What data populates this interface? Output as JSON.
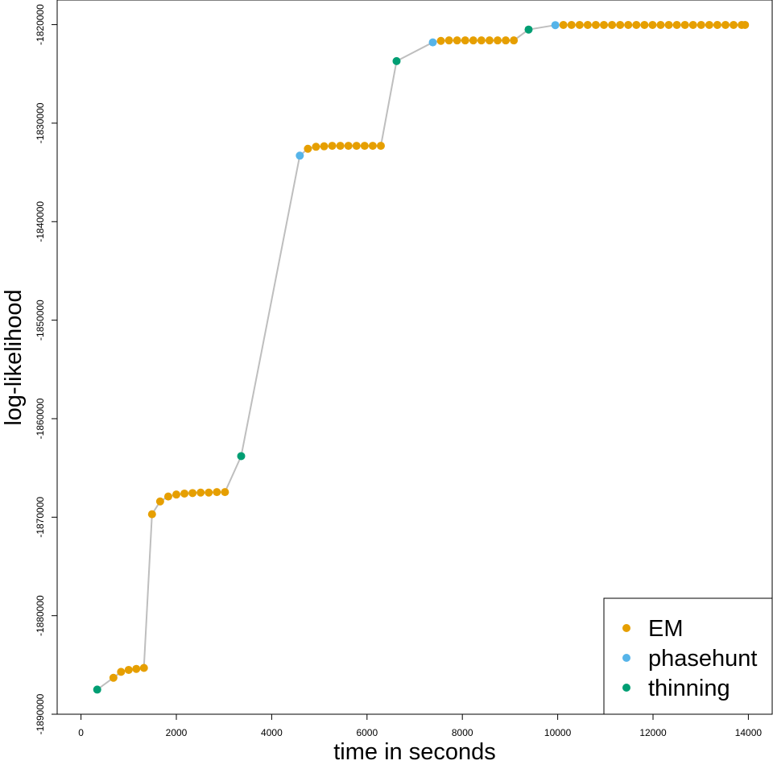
{
  "chart_data": {
    "type": "scatter",
    "title": "",
    "xlabel": "time in seconds",
    "ylabel": "log-likelihood",
    "xlim": [
      -500,
      14500
    ],
    "ylim": [
      -1890000,
      -1817500
    ],
    "xticks": [
      0,
      2000,
      4000,
      6000,
      8000,
      10000,
      12000,
      14000
    ],
    "yticks": [
      -1890000,
      -1880000,
      -1870000,
      -1860000,
      -1850000,
      -1840000,
      -1830000,
      -1820000
    ],
    "grid": false,
    "legend_position": "bottom-right",
    "line_color": "#bebebe",
    "series": [
      {
        "name": "EM",
        "color": "#E69F00"
      },
      {
        "name": "phasehunt",
        "color": "#56B4E9"
      },
      {
        "name": "thinning",
        "color": "#009E73"
      }
    ],
    "points": [
      {
        "x": 340,
        "y": -1887500,
        "series": "thinning"
      },
      {
        "x": 680,
        "y": -1886300,
        "series": "EM"
      },
      {
        "x": 840,
        "y": -1885700,
        "series": "EM"
      },
      {
        "x": 1000,
        "y": -1885500,
        "series": "EM"
      },
      {
        "x": 1160,
        "y": -1885400,
        "series": "EM"
      },
      {
        "x": 1320,
        "y": -1885300,
        "series": "EM"
      },
      {
        "x": 1490,
        "y": -1869700,
        "series": "EM"
      },
      {
        "x": 1660,
        "y": -1868400,
        "series": "EM"
      },
      {
        "x": 1830,
        "y": -1867900,
        "series": "EM"
      },
      {
        "x": 2000,
        "y": -1867700,
        "series": "EM"
      },
      {
        "x": 2170,
        "y": -1867600,
        "series": "EM"
      },
      {
        "x": 2340,
        "y": -1867550,
        "series": "EM"
      },
      {
        "x": 2510,
        "y": -1867500,
        "series": "EM"
      },
      {
        "x": 2680,
        "y": -1867500,
        "series": "EM"
      },
      {
        "x": 2850,
        "y": -1867450,
        "series": "EM"
      },
      {
        "x": 3020,
        "y": -1867450,
        "series": "EM"
      },
      {
        "x": 3360,
        "y": -1863800,
        "series": "thinning"
      },
      {
        "x": 4590,
        "y": -1833300,
        "series": "phasehunt"
      },
      {
        "x": 4760,
        "y": -1832600,
        "series": "EM"
      },
      {
        "x": 4930,
        "y": -1832400,
        "series": "EM"
      },
      {
        "x": 5100,
        "y": -1832350,
        "series": "EM"
      },
      {
        "x": 5270,
        "y": -1832300,
        "series": "EM"
      },
      {
        "x": 5440,
        "y": -1832300,
        "series": "EM"
      },
      {
        "x": 5610,
        "y": -1832300,
        "series": "EM"
      },
      {
        "x": 5780,
        "y": -1832300,
        "series": "EM"
      },
      {
        "x": 5950,
        "y": -1832300,
        "series": "EM"
      },
      {
        "x": 6120,
        "y": -1832300,
        "series": "EM"
      },
      {
        "x": 6290,
        "y": -1832300,
        "series": "EM"
      },
      {
        "x": 6620,
        "y": -1823700,
        "series": "thinning"
      },
      {
        "x": 7380,
        "y": -1821800,
        "series": "phasehunt"
      },
      {
        "x": 7550,
        "y": -1821650,
        "series": "EM"
      },
      {
        "x": 7720,
        "y": -1821600,
        "series": "EM"
      },
      {
        "x": 7890,
        "y": -1821600,
        "series": "EM"
      },
      {
        "x": 8060,
        "y": -1821600,
        "series": "EM"
      },
      {
        "x": 8230,
        "y": -1821600,
        "series": "EM"
      },
      {
        "x": 8400,
        "y": -1821600,
        "series": "EM"
      },
      {
        "x": 8570,
        "y": -1821600,
        "series": "EM"
      },
      {
        "x": 8740,
        "y": -1821600,
        "series": "EM"
      },
      {
        "x": 8910,
        "y": -1821600,
        "series": "EM"
      },
      {
        "x": 9080,
        "y": -1821600,
        "series": "EM"
      },
      {
        "x": 9390,
        "y": -1820500,
        "series": "thinning"
      },
      {
        "x": 9950,
        "y": -1820050,
        "series": "phasehunt"
      },
      {
        "x": 10120,
        "y": -1820030,
        "series": "EM"
      },
      {
        "x": 10290,
        "y": -1820030,
        "series": "EM"
      },
      {
        "x": 10460,
        "y": -1820030,
        "series": "EM"
      },
      {
        "x": 10630,
        "y": -1820030,
        "series": "EM"
      },
      {
        "x": 10800,
        "y": -1820030,
        "series": "EM"
      },
      {
        "x": 10970,
        "y": -1820030,
        "series": "EM"
      },
      {
        "x": 11140,
        "y": -1820030,
        "series": "EM"
      },
      {
        "x": 11310,
        "y": -1820030,
        "series": "EM"
      },
      {
        "x": 11480,
        "y": -1820030,
        "series": "EM"
      },
      {
        "x": 11650,
        "y": -1820030,
        "series": "EM"
      },
      {
        "x": 11820,
        "y": -1820030,
        "series": "EM"
      },
      {
        "x": 11990,
        "y": -1820030,
        "series": "EM"
      },
      {
        "x": 12160,
        "y": -1820030,
        "series": "EM"
      },
      {
        "x": 12330,
        "y": -1820030,
        "series": "EM"
      },
      {
        "x": 12500,
        "y": -1820030,
        "series": "EM"
      },
      {
        "x": 12670,
        "y": -1820030,
        "series": "EM"
      },
      {
        "x": 12840,
        "y": -1820030,
        "series": "EM"
      },
      {
        "x": 13010,
        "y": -1820030,
        "series": "EM"
      },
      {
        "x": 13180,
        "y": -1820030,
        "series": "EM"
      },
      {
        "x": 13350,
        "y": -1820030,
        "series": "EM"
      },
      {
        "x": 13520,
        "y": -1820030,
        "series": "EM"
      },
      {
        "x": 13690,
        "y": -1820030,
        "series": "EM"
      },
      {
        "x": 13860,
        "y": -1820030,
        "series": "EM"
      },
      {
        "x": 13930,
        "y": -1820030,
        "series": "EM"
      }
    ]
  }
}
